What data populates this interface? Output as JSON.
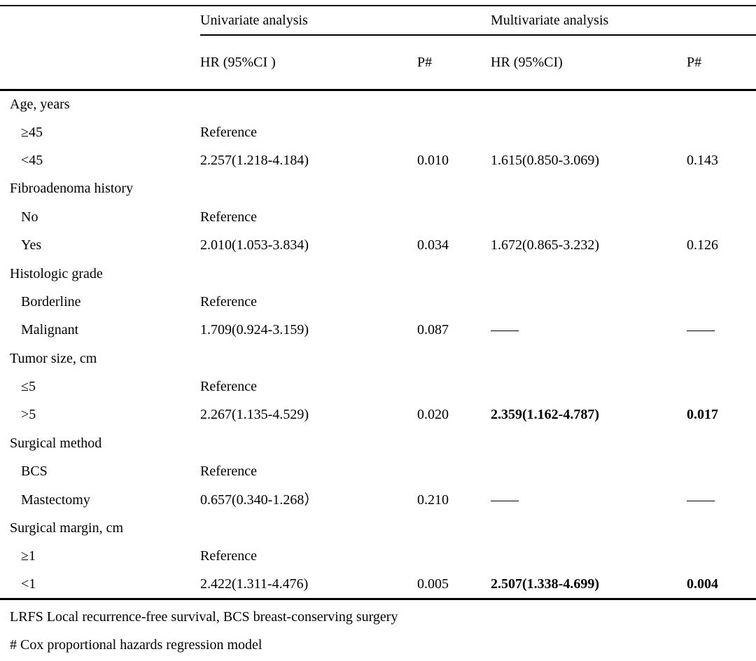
{
  "colors": {
    "background": "#ffffff",
    "text": "#000000",
    "rule": "#000000"
  },
  "table": {
    "spanners": {
      "univariate": "Univariate analysis",
      "multivariate": "Multivariate analysis"
    },
    "columns": {
      "uni_hr": "HR (95%CI )",
      "uni_p": "P#",
      "multi_hr": "HR (95%CI)",
      "multi_p": "P#"
    },
    "rows": [
      {
        "label": "Age, years",
        "indent": false,
        "uni_hr": "",
        "uni_p": "",
        "multi_hr": "",
        "multi_p": "",
        "multi_bold": false
      },
      {
        "label": "≥45",
        "indent": true,
        "uni_hr": "Reference",
        "uni_p": "",
        "multi_hr": "",
        "multi_p": "",
        "multi_bold": false
      },
      {
        "label": "<45",
        "indent": true,
        "uni_hr": "2.257(1.218-4.184)",
        "uni_p": "0.010",
        "multi_hr": "1.615(0.850-3.069)",
        "multi_p": "0.143",
        "multi_bold": false
      },
      {
        "label": "Fibroadenoma history",
        "indent": false,
        "uni_hr": "",
        "uni_p": "",
        "multi_hr": "",
        "multi_p": "",
        "multi_bold": false
      },
      {
        "label": "No",
        "indent": true,
        "uni_hr": "Reference",
        "uni_p": "",
        "multi_hr": "",
        "multi_p": "",
        "multi_bold": false
      },
      {
        "label": "Yes",
        "indent": true,
        "uni_hr": "2.010(1.053-3.834)",
        "uni_p": "0.034",
        "multi_hr": "1.672(0.865-3.232)",
        "multi_p": "0.126",
        "multi_bold": false
      },
      {
        "label": "Histologic grade",
        "indent": false,
        "uni_hr": "",
        "uni_p": "",
        "multi_hr": "",
        "multi_p": "",
        "multi_bold": false
      },
      {
        "label": "Borderline",
        "indent": true,
        "uni_hr": "Reference",
        "uni_p": "",
        "multi_hr": "",
        "multi_p": "",
        "multi_bold": false
      },
      {
        "label": "Malignant",
        "indent": true,
        "uni_hr": "1.709(0.924-3.159)",
        "uni_p": "0.087",
        "multi_hr": "——",
        "multi_p": "——",
        "multi_bold": false
      },
      {
        "label": "Tumor size, cm",
        "indent": false,
        "uni_hr": "",
        "uni_p": "",
        "multi_hr": "",
        "multi_p": "",
        "multi_bold": false
      },
      {
        "label": "≤5",
        "indent": true,
        "uni_hr": "Reference",
        "uni_p": "",
        "multi_hr": "",
        "multi_p": "",
        "multi_bold": false
      },
      {
        "label": ">5",
        "indent": true,
        "uni_hr": "2.267(1.135-4.529)",
        "uni_p": "0.020",
        "multi_hr": "2.359(1.162-4.787)",
        "multi_p": "0.017",
        "multi_bold": true
      },
      {
        "label": "Surgical method",
        "indent": false,
        "uni_hr": "",
        "uni_p": "",
        "multi_hr": "",
        "multi_p": "",
        "multi_bold": false
      },
      {
        "label": "BCS",
        "indent": true,
        "uni_hr": "Reference",
        "uni_p": "",
        "multi_hr": "",
        "multi_p": "",
        "multi_bold": false
      },
      {
        "label": "Mastectomy",
        "indent": true,
        "uni_hr": "0.657(0.340-1.268）",
        "uni_p": "0.210",
        "multi_hr": "——",
        "multi_p": "——",
        "multi_bold": false
      },
      {
        "label": "Surgical margin, cm",
        "indent": false,
        "uni_hr": "",
        "uni_p": "",
        "multi_hr": "",
        "multi_p": "",
        "multi_bold": false
      },
      {
        "label": "≥1",
        "indent": true,
        "uni_hr": "Reference",
        "uni_p": "",
        "multi_hr": "",
        "multi_p": "",
        "multi_bold": false
      },
      {
        "label": "<1",
        "indent": true,
        "uni_hr": "2.422(1.311-4.476)",
        "uni_p": "0.005",
        "multi_hr": "2.507(1.338-4.699)",
        "multi_p": "0.004",
        "multi_bold": true
      }
    ],
    "footnotes": [
      "LRFS Local recurrence-free survival, BCS breast-conserving surgery",
      "# Cox proportional hazards regression model"
    ]
  }
}
